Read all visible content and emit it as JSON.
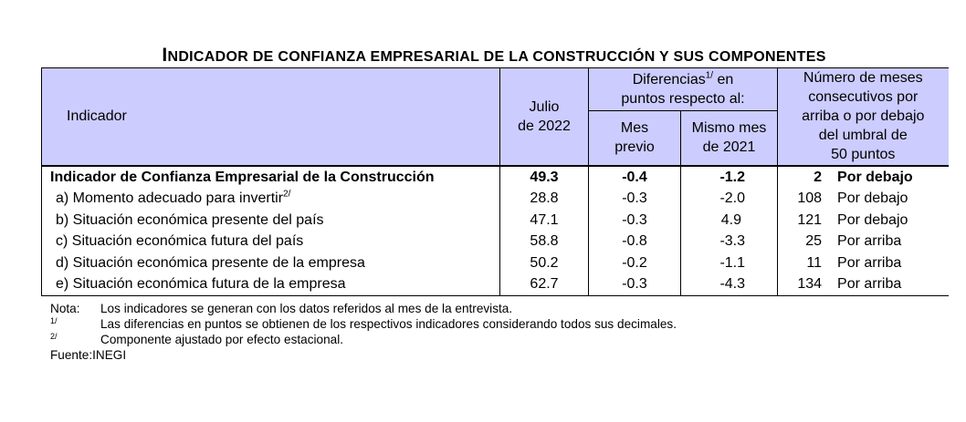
{
  "title": {
    "cap1": "I",
    "rest1": "NDICADOR DE CONFIANZA EMPRESARIAL DE LA CONSTRUCCIÓN Y SUS COMPONENTES"
  },
  "headers": {
    "indicador": "Indicador",
    "julio_line1": "Julio",
    "julio_line2": "de 2022",
    "diferencias_line1": "Diferencias",
    "diferencias_sup": "1/",
    "diferencias_line1b": " en",
    "diferencias_line2": "puntos respecto al:",
    "mes_line1": "Mes",
    "mes_line2": "previo",
    "mismo_line1": "Mismo mes",
    "mismo_line2": "de 2021",
    "meses_line1": "Número de meses",
    "meses_line2": "consecutivos por",
    "meses_line3": "arriba o por debajo",
    "meses_line4": "del umbral de",
    "meses_line5": "50 puntos"
  },
  "rows": [
    {
      "name": "Indicador de Confianza Empresarial de la Construcción",
      "sup": "",
      "value": "49.3",
      "mes_previo": "-0.4",
      "mismo_mes": "-1.2",
      "count": "2",
      "direction": "Por debajo"
    },
    {
      "name": "a)  Momento adecuado para invertir",
      "sup": "2/",
      "value": "28.8",
      "mes_previo": "-0.3",
      "mismo_mes": "-2.0",
      "count": "108",
      "direction": "Por debajo"
    },
    {
      "name": "b)  Situación económica presente del país",
      "sup": "",
      "value": "47.1",
      "mes_previo": "-0.3",
      "mismo_mes": "4.9",
      "count": "121",
      "direction": "Por debajo"
    },
    {
      "name": "c)  Situación económica futura del país",
      "sup": "",
      "value": "58.8",
      "mes_previo": "-0.8",
      "mismo_mes": "-3.3",
      "count": "25",
      "direction": "Por arriba"
    },
    {
      "name": "d)  Situación económica presente de la empresa",
      "sup": "",
      "value": "50.2",
      "mes_previo": "-0.2",
      "mismo_mes": "-1.1",
      "count": "11",
      "direction": "Por arriba"
    },
    {
      "name": "e)  Situación económica futura de la empresa",
      "sup": "",
      "value": "62.7",
      "mes_previo": "-0.3",
      "mismo_mes": "-4.3",
      "count": "134",
      "direction": "Por arriba"
    }
  ],
  "notes": {
    "nota_label": "Nota:",
    "nota_text": "Los indicadores se generan con los datos referidos al mes de la entrevista.",
    "n1_mark": "1/",
    "n1_text": "Las diferencias en puntos se obtienen de los respectivos indicadores considerando todos sus decimales.",
    "n2_mark": "2/",
    "n2_text": "Componente ajustado por efecto estacional.",
    "fuente": "Fuente:INEGI"
  }
}
